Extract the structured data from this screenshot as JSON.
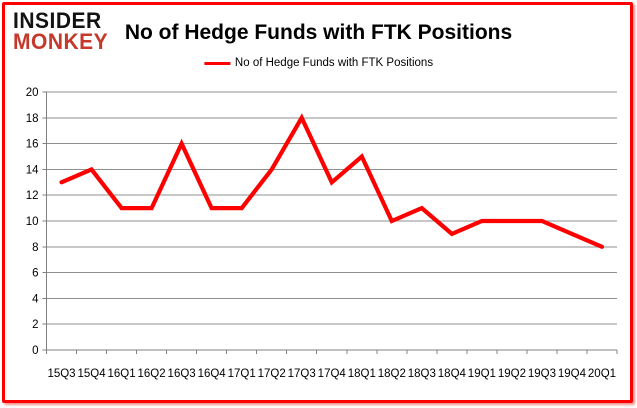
{
  "logo": {
    "line1": "INSIDER",
    "line2": "MONKEY"
  },
  "header": {
    "title": "No of Hedge Funds with FTK Positions"
  },
  "legend": {
    "label": "No of Hedge Funds with FTK Positions"
  },
  "colors": {
    "series_line": "#ff0000",
    "logo_black": "#131313",
    "logo_red": "#c5392c",
    "gridline": "#8f8f8f",
    "axis": "#808080",
    "frame_border": "#fe0000",
    "label_text": "#000000"
  },
  "chart_data": {
    "type": "line",
    "title": "No of Hedge Funds with FTK Positions",
    "series_name": "No of Hedge Funds with FTK Positions",
    "categories": [
      "15Q3",
      "15Q4",
      "16Q1",
      "16Q2",
      "16Q3",
      "16Q4",
      "17Q1",
      "17Q2",
      "17Q3",
      "17Q4",
      "18Q1",
      "18Q2",
      "18Q3",
      "18Q4",
      "19Q1",
      "19Q2",
      "19Q3",
      "19Q4",
      "20Q1"
    ],
    "values": [
      13,
      14,
      11,
      11,
      16,
      11,
      11,
      14,
      18,
      13,
      15,
      10,
      11,
      9,
      10,
      10,
      10,
      9,
      8
    ],
    "xlabel": "",
    "ylabel": "",
    "ylim": [
      0,
      20
    ],
    "ytick_step": 2,
    "grid": true,
    "legend_position": "top-center",
    "line_color": "#ff0000"
  }
}
